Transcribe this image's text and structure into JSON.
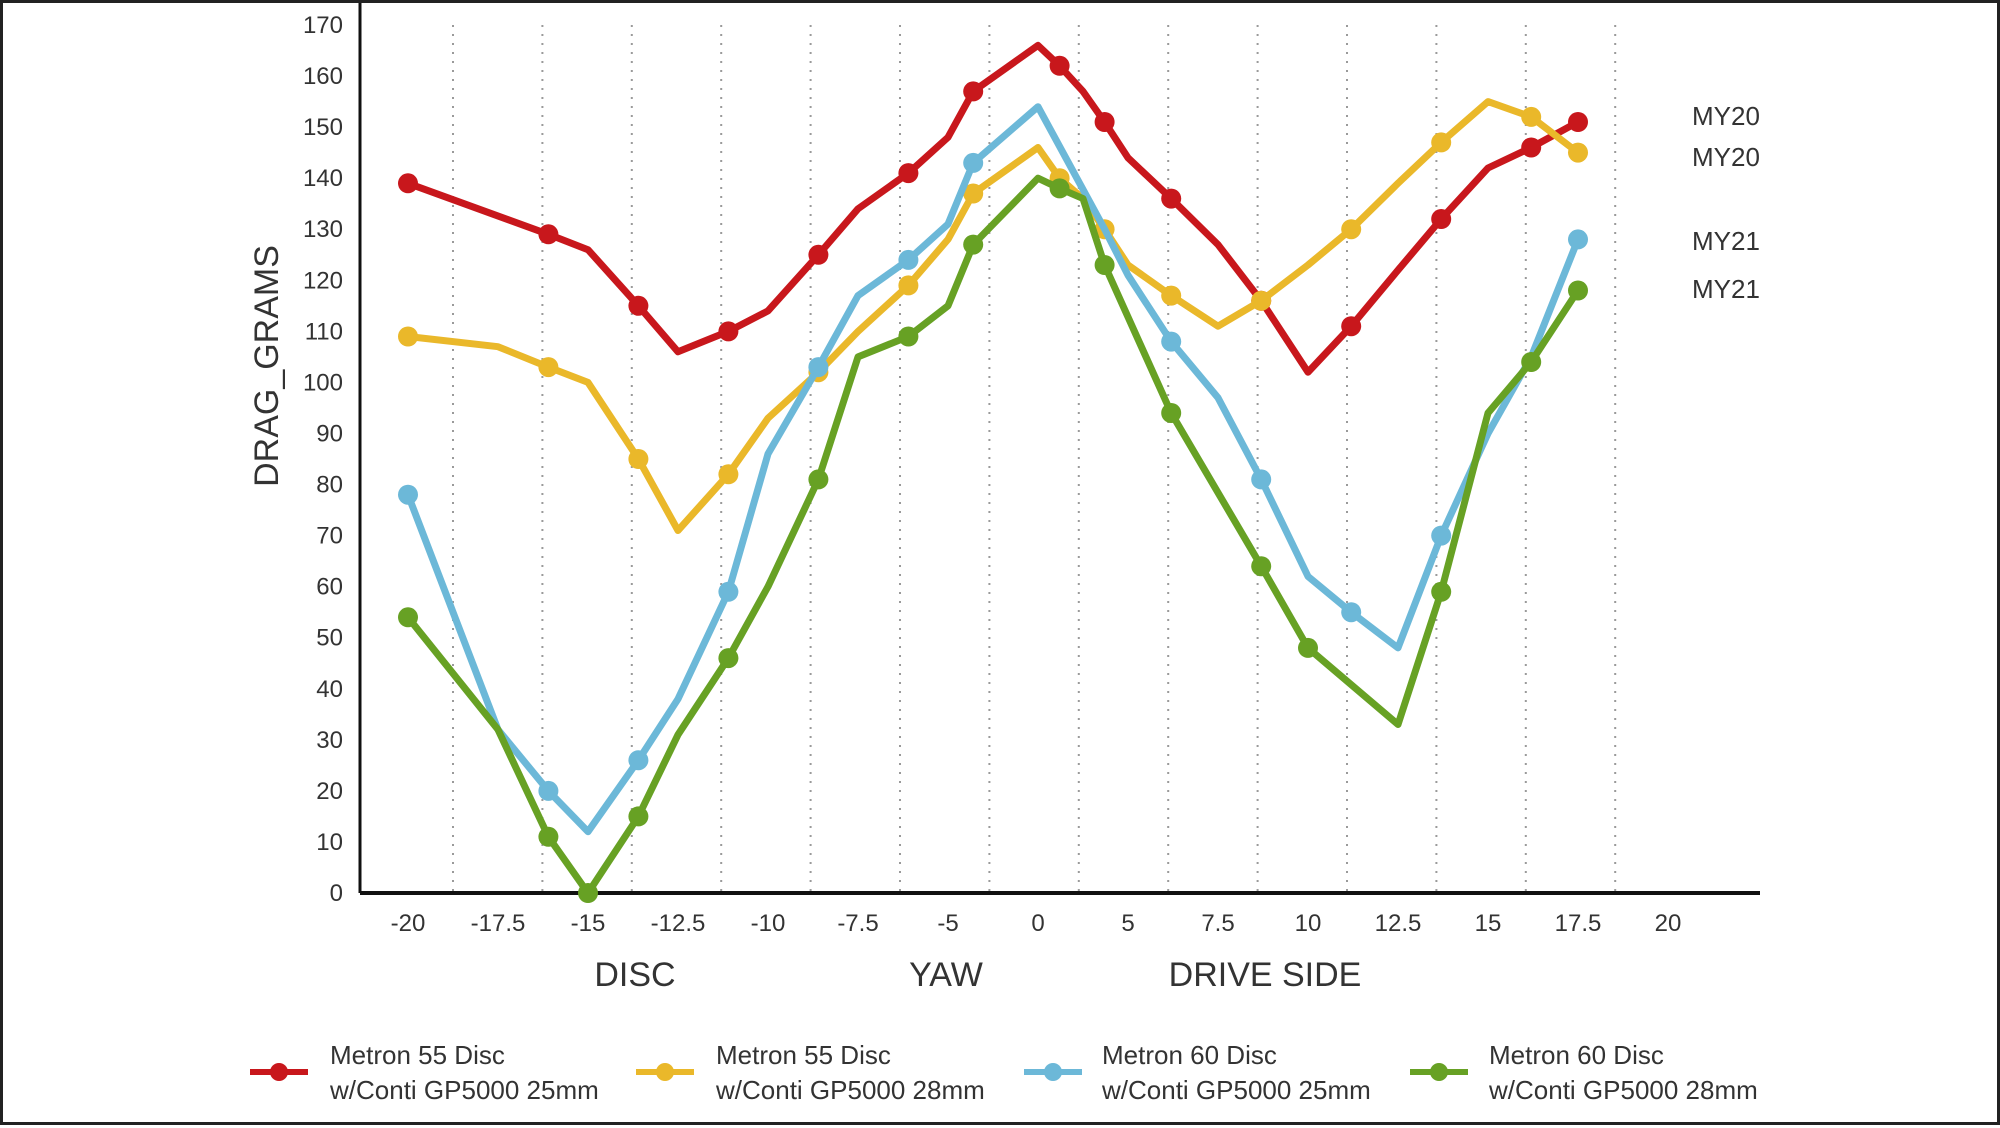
{
  "chart_data": {
    "type": "line",
    "ylabel": "DRAG_GRAMS",
    "ylim": [
      0,
      170
    ],
    "y_ticks": [
      0,
      10,
      20,
      30,
      40,
      50,
      60,
      70,
      80,
      90,
      100,
      110,
      120,
      130,
      140,
      150,
      160,
      170
    ],
    "xlim": [
      -20,
      20
    ],
    "x_ticks": [
      -20,
      -17.5,
      -15,
      -12.5,
      -10,
      -7.5,
      -5,
      0,
      5,
      7.5,
      10,
      12.5,
      15,
      17.5,
      20
    ],
    "x_tick_labels": [
      "-20",
      "-17.5",
      "-15",
      "-12.5",
      "-10",
      "-7.5",
      "-5",
      "0",
      "5",
      "7.5",
      "10",
      "12.5",
      "15",
      "17.5",
      "20"
    ],
    "x_group_labels": [
      "DISC",
      "YAW",
      "DRIVE SIDE"
    ],
    "grid": "vertical dotted",
    "colors": [
      "#c8171c",
      "#eab82a",
      "#6cb8d8",
      "#67a124"
    ],
    "series": [
      {
        "name": "Metron 55 Disc w/Conti GP5000 25mm",
        "legend_line1": "Metron 55 Disc",
        "legend_line2": "w/Conti GP5000 25mm",
        "end_label": "MY20",
        "color": "#c8171c",
        "points": [
          {
            "x": -20,
            "y": 139,
            "m": true
          },
          {
            "x": -16.1,
            "y": 129,
            "m": true
          },
          {
            "x": -15,
            "y": 126,
            "m": false
          },
          {
            "x": -13.6,
            "y": 115,
            "m": true
          },
          {
            "x": -12.5,
            "y": 106,
            "m": false
          },
          {
            "x": -11.1,
            "y": 110,
            "m": true
          },
          {
            "x": -10,
            "y": 114,
            "m": false
          },
          {
            "x": -8.6,
            "y": 125,
            "m": true
          },
          {
            "x": -7.5,
            "y": 134,
            "m": false
          },
          {
            "x": -6.1,
            "y": 141,
            "m": true
          },
          {
            "x": -5,
            "y": 148,
            "m": false
          },
          {
            "x": -3.6,
            "y": 157,
            "m": true
          },
          {
            "x": 0,
            "y": 166,
            "m": false
          },
          {
            "x": 1.2,
            "y": 162,
            "m": true
          },
          {
            "x": 2.5,
            "y": 157,
            "m": false
          },
          {
            "x": 3.7,
            "y": 151,
            "m": true
          },
          {
            "x": 5,
            "y": 144,
            "m": false
          },
          {
            "x": 6.2,
            "y": 136,
            "m": true
          },
          {
            "x": 7.5,
            "y": 127,
            "m": false
          },
          {
            "x": 8.7,
            "y": 116,
            "m": true
          },
          {
            "x": 10,
            "y": 102,
            "m": false
          },
          {
            "x": 11.2,
            "y": 111,
            "m": true
          },
          {
            "x": 12.5,
            "y": 122,
            "m": false
          },
          {
            "x": 13.7,
            "y": 132,
            "m": true
          },
          {
            "x": 15,
            "y": 142,
            "m": false
          },
          {
            "x": 16.2,
            "y": 146,
            "m": true
          },
          {
            "x": 17.5,
            "y": 151,
            "m": true
          }
        ]
      },
      {
        "name": "Metron 55 Disc w/Conti GP5000 28mm",
        "legend_line1": "Metron 55 Disc",
        "legend_line2": "w/Conti GP5000 28mm",
        "end_label": "MY20",
        "color": "#eab82a",
        "points": [
          {
            "x": -20,
            "y": 109,
            "m": true
          },
          {
            "x": -17.5,
            "y": 107,
            "m": false
          },
          {
            "x": -16.1,
            "y": 103,
            "m": true
          },
          {
            "x": -15,
            "y": 100,
            "m": false
          },
          {
            "x": -13.6,
            "y": 85,
            "m": true
          },
          {
            "x": -12.5,
            "y": 71,
            "m": false
          },
          {
            "x": -11.1,
            "y": 82,
            "m": true
          },
          {
            "x": -10,
            "y": 93,
            "m": false
          },
          {
            "x": -8.6,
            "y": 102,
            "m": true
          },
          {
            "x": -7.5,
            "y": 110,
            "m": false
          },
          {
            "x": -6.1,
            "y": 119,
            "m": true
          },
          {
            "x": -5,
            "y": 128,
            "m": false
          },
          {
            "x": -3.6,
            "y": 137,
            "m": true
          },
          {
            "x": 0,
            "y": 146,
            "m": false
          },
          {
            "x": 1.2,
            "y": 140,
            "m": true
          },
          {
            "x": 2.5,
            "y": 136,
            "m": false
          },
          {
            "x": 3.7,
            "y": 130,
            "m": true
          },
          {
            "x": 5,
            "y": 123,
            "m": false
          },
          {
            "x": 6.2,
            "y": 117,
            "m": true
          },
          {
            "x": 7.5,
            "y": 111,
            "m": false
          },
          {
            "x": 8.7,
            "y": 116,
            "m": true
          },
          {
            "x": 10,
            "y": 123,
            "m": false
          },
          {
            "x": 11.2,
            "y": 130,
            "m": true
          },
          {
            "x": 12.5,
            "y": 139,
            "m": false
          },
          {
            "x": 13.7,
            "y": 147,
            "m": true
          },
          {
            "x": 15,
            "y": 155,
            "m": false
          },
          {
            "x": 16.2,
            "y": 152,
            "m": true
          },
          {
            "x": 17.5,
            "y": 145,
            "m": true
          }
        ]
      },
      {
        "name": "Metron 60 Disc w/Conti GP5000 25mm",
        "legend_line1": "Metron 60 Disc",
        "legend_line2": "w/Conti GP5000 25mm",
        "end_label": "MY21",
        "color": "#6cb8d8",
        "points": [
          {
            "x": -20,
            "y": 78,
            "m": true
          },
          {
            "x": -17.5,
            "y": 32,
            "m": false
          },
          {
            "x": -16.1,
            "y": 20,
            "m": true
          },
          {
            "x": -15,
            "y": 12,
            "m": false
          },
          {
            "x": -13.6,
            "y": 26,
            "m": true
          },
          {
            "x": -12.5,
            "y": 38,
            "m": false
          },
          {
            "x": -11.1,
            "y": 59,
            "m": true
          },
          {
            "x": -10,
            "y": 86,
            "m": false
          },
          {
            "x": -8.6,
            "y": 103,
            "m": true
          },
          {
            "x": -7.5,
            "y": 117,
            "m": false
          },
          {
            "x": -6.1,
            "y": 124,
            "m": true
          },
          {
            "x": -5,
            "y": 131,
            "m": false
          },
          {
            "x": -3.6,
            "y": 143,
            "m": true
          },
          {
            "x": 0,
            "y": 154,
            "m": false
          },
          {
            "x": 3.7,
            "y": 130,
            "m": false
          },
          {
            "x": 5,
            "y": 121,
            "m": false
          },
          {
            "x": 6.2,
            "y": 108,
            "m": true
          },
          {
            "x": 7.5,
            "y": 97,
            "m": false
          },
          {
            "x": 8.7,
            "y": 81,
            "m": true
          },
          {
            "x": 10,
            "y": 62,
            "m": false
          },
          {
            "x": 11.2,
            "y": 55,
            "m": true
          },
          {
            "x": 12.5,
            "y": 48,
            "m": false
          },
          {
            "x": 13.7,
            "y": 70,
            "m": true
          },
          {
            "x": 15,
            "y": 90,
            "m": false
          },
          {
            "x": 16.2,
            "y": 105,
            "m": false
          },
          {
            "x": 17.5,
            "y": 128,
            "m": true
          }
        ]
      },
      {
        "name": "Metron 60 Disc w/Conti GP5000 28mm",
        "legend_line1": "Metron 60 Disc",
        "legend_line2": "w/Conti GP5000 28mm",
        "end_label": "MY21",
        "color": "#67a124",
        "points": [
          {
            "x": -20,
            "y": 54,
            "m": true
          },
          {
            "x": -17.5,
            "y": 32,
            "m": false
          },
          {
            "x": -16.1,
            "y": 11,
            "m": true
          },
          {
            "x": -15,
            "y": 0,
            "m": true
          },
          {
            "x": -13.6,
            "y": 15,
            "m": true
          },
          {
            "x": -12.5,
            "y": 31,
            "m": false
          },
          {
            "x": -11.1,
            "y": 46,
            "m": true
          },
          {
            "x": -10,
            "y": 60,
            "m": false
          },
          {
            "x": -8.6,
            "y": 81,
            "m": true
          },
          {
            "x": -7.5,
            "y": 105,
            "m": false
          },
          {
            "x": -6.1,
            "y": 109,
            "m": true
          },
          {
            "x": -5,
            "y": 115,
            "m": false
          },
          {
            "x": -3.6,
            "y": 127,
            "m": true
          },
          {
            "x": 0,
            "y": 140,
            "m": false
          },
          {
            "x": 1.2,
            "y": 138,
            "m": true
          },
          {
            "x": 2.5,
            "y": 136,
            "m": false
          },
          {
            "x": 3.7,
            "y": 123,
            "m": true
          },
          {
            "x": 6.2,
            "y": 94,
            "m": true
          },
          {
            "x": 8.7,
            "y": 64,
            "m": true
          },
          {
            "x": 10,
            "y": 48,
            "m": true
          },
          {
            "x": 12.5,
            "y": 33,
            "m": false
          },
          {
            "x": 13.7,
            "y": 59,
            "m": true
          },
          {
            "x": 15,
            "y": 94,
            "m": false
          },
          {
            "x": 16.2,
            "y": 104,
            "m": true
          },
          {
            "x": 17.5,
            "y": 118,
            "m": true
          }
        ]
      }
    ]
  }
}
